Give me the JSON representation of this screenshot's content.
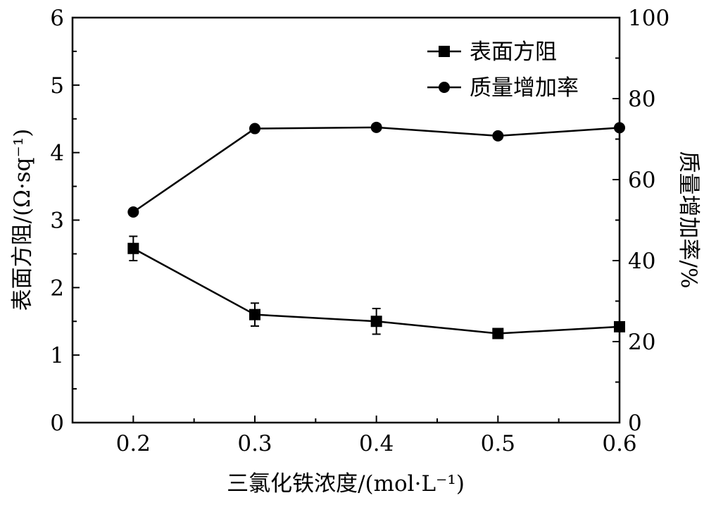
{
  "chart_data": {
    "type": "line",
    "title": "",
    "xlabel": "三氯化铁浓度/(mol·L⁻¹)",
    "ylabel_left": "表面方阻/(Ω·sq⁻¹)",
    "ylabel_right": "质量增加率/%",
    "xlim": [
      0.15,
      0.6
    ],
    "ylim_left": [
      0,
      6
    ],
    "ylim_right": [
      0,
      100
    ],
    "x_ticks": [
      "0.2",
      "0.3",
      "0.4",
      "0.5",
      "0.6"
    ],
    "x_tick_values": [
      0.2,
      0.3,
      0.4,
      0.5,
      0.6
    ],
    "y_left_ticks": [
      "0",
      "1",
      "2",
      "3",
      "4",
      "5",
      "6"
    ],
    "y_left_tick_values": [
      0,
      1,
      2,
      3,
      4,
      5,
      6
    ],
    "y_right_ticks": [
      "0",
      "20",
      "40",
      "60",
      "80",
      "100"
    ],
    "y_right_tick_values": [
      0,
      20,
      40,
      60,
      80,
      100
    ],
    "grid": false,
    "legend_position": "top-right",
    "x": [
      0.2,
      0.3,
      0.4,
      0.5,
      0.6
    ],
    "series": [
      {
        "name": "表面方阻",
        "axis": "left",
        "marker": "square",
        "values": [
          2.58,
          1.6,
          1.5,
          1.32,
          1.42
        ],
        "errors": [
          0.18,
          0.17,
          0.19,
          0.05,
          0.05
        ]
      },
      {
        "name": "质量增加率",
        "axis": "right",
        "marker": "circle",
        "values": [
          52.0,
          72.6,
          72.9,
          70.8,
          72.8
        ]
      }
    ],
    "colors": {
      "line": "#000000",
      "background": "#ffffff"
    }
  }
}
